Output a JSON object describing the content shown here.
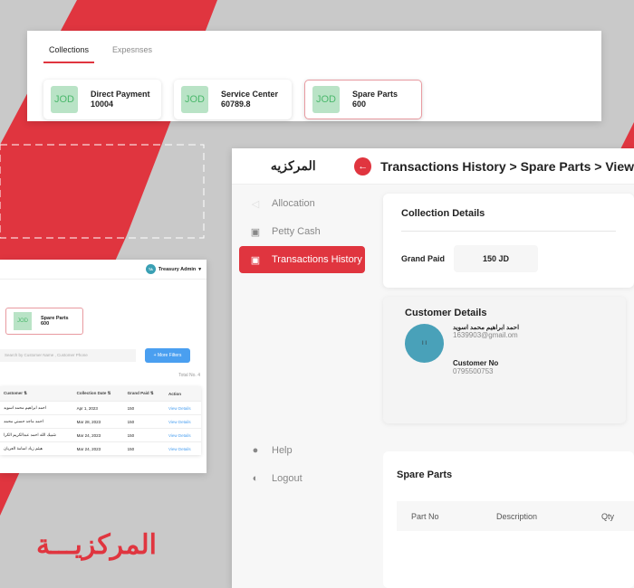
{
  "colors": {
    "accent": "#e0353f",
    "success_bg": "#b9e3c6",
    "link": "#4a9ff0"
  },
  "summary": {
    "tabs": [
      {
        "label": "Collections",
        "active": true
      },
      {
        "label": "Expesnses",
        "active": false
      }
    ],
    "cards": [
      {
        "icon": "JOD",
        "title": "Direct Payment",
        "value": "10004"
      },
      {
        "icon": "JOD",
        "title": "Service Center",
        "value": "60789.8"
      },
      {
        "icon": "JOD",
        "title": "Spare Parts",
        "value": "600"
      }
    ]
  },
  "list": {
    "user_initials": "TA",
    "user_name": "Treasury Admin",
    "card": {
      "icon": "JOD",
      "title": "Spare Parts",
      "value": "600"
    },
    "search_placeholder": "Search by Customer Name , Customer Phone",
    "filters_label": "+ More Filters",
    "total": "Total No. 4",
    "columns": [
      "Customer ⇅",
      "Collection Date ⇅",
      "Grand Paid ⇅",
      "Action"
    ],
    "rows": [
      [
        "احمد ابراهيم محمد اسويد",
        "Apr 1, 2023",
        "150",
        "View Details"
      ],
      [
        "احمد ماجد حسني محمد",
        "Mar 28, 2023",
        "150",
        "View Details"
      ],
      [
        "شبيك الله احمد عبدالكريم الكرا",
        "Mar 24, 2023",
        "150",
        "View Details"
      ],
      [
        "هيثم زياد اسامة العريان",
        "Mar 24, 2023",
        "150",
        "View Details"
      ]
    ]
  },
  "detail": {
    "logo": "المركزيه",
    "breadcrumb": "Transactions History > Spare Parts > View",
    "nav": [
      {
        "label": "Allocation",
        "icon": "allocation-icon"
      },
      {
        "label": "Petty Cash",
        "icon": "cash-icon"
      },
      {
        "label": "Transactions History",
        "icon": "cash-icon",
        "active": true
      },
      {
        "label": "Help",
        "icon": "help-icon"
      },
      {
        "label": "Logout",
        "icon": "logout-icon"
      }
    ],
    "collection_title": "Collection Details",
    "grand_paid_label": "Grand Paid",
    "grand_paid_value": "150 JD",
    "customer_title": "Customer Details",
    "avatar": "I I",
    "customer_name": "احمد ابراهيم محمد اسويد",
    "customer_email": "1639903@gmail.om",
    "customer_no_label": "Customer No",
    "customer_no": "0795500753",
    "spare_title": "Spare Parts",
    "spare_columns": [
      "Part No",
      "Description",
      "Qty"
    ]
  },
  "brand": "المركزيـــة"
}
